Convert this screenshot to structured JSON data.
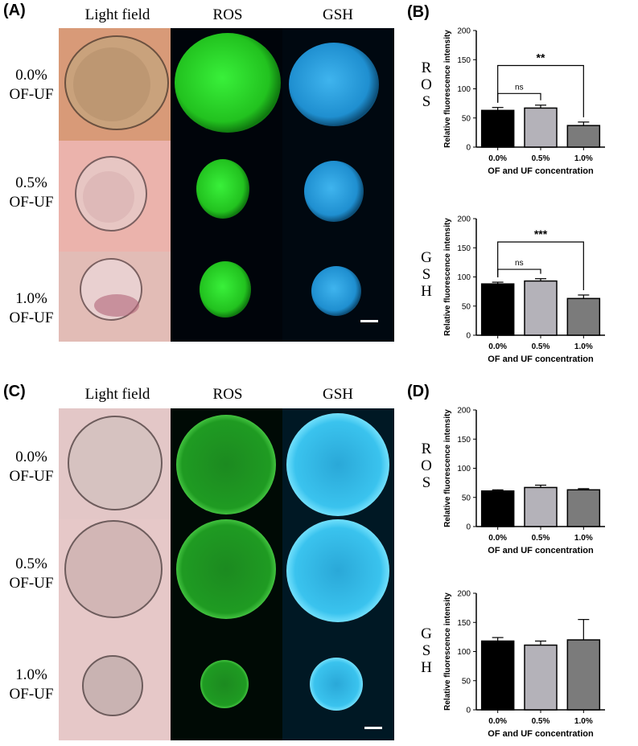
{
  "panelA": {
    "label": "(A)",
    "columns": [
      "Light field",
      "ROS",
      "GSH"
    ],
    "rows": [
      {
        "conc": "0.0%",
        "name": "OF-UF"
      },
      {
        "conc": "0.5%",
        "name": "OF-UF"
      },
      {
        "conc": "1.0%",
        "name": "OF-UF"
      }
    ]
  },
  "panelC": {
    "label": "(C)",
    "columns": [
      "Light field",
      "ROS",
      "GSH"
    ],
    "rows": [
      {
        "conc": "0.0%",
        "name": "OF-UF"
      },
      {
        "conc": "0.5%",
        "name": "OF-UF"
      },
      {
        "conc": "1.0%",
        "name": "OF-UF"
      }
    ]
  },
  "panelB": {
    "label": "(B)"
  },
  "panelD": {
    "label": "(D)"
  },
  "vertical_labels": {
    "ros": [
      "R",
      "O",
      "S"
    ],
    "gsh": [
      "G",
      "S",
      "H"
    ]
  },
  "colors": {
    "bar_0": "#000000",
    "bar_05": "#b4b2b9",
    "bar_1": "#7b7b7b",
    "ros": "#2ad42a",
    "gsh": "#2aa6e8"
  },
  "chart_data": [
    {
      "id": "B-ROS",
      "type": "bar",
      "categories": [
        "0.0%",
        "0.5%",
        "1.0%"
      ],
      "values": [
        63,
        67,
        37
      ],
      "errors": [
        5,
        5,
        6
      ],
      "ylabel": "Relative fluorescence intensity",
      "xlabel": "OF and UF concentration",
      "ylim": [
        0,
        200
      ],
      "yticks": [
        0,
        50,
        100,
        150,
        200
      ],
      "annotations": [
        {
          "from": 0,
          "to": 1,
          "text": "ns",
          "y": 92
        },
        {
          "from": 0,
          "to": 2,
          "text": "**",
          "y": 140
        }
      ]
    },
    {
      "id": "B-GSH",
      "type": "bar",
      "categories": [
        "0.0%",
        "0.5%",
        "1.0%"
      ],
      "values": [
        88,
        93,
        63
      ],
      "errors": [
        3,
        4,
        6
      ],
      "ylabel": "Relative fluorescence intensity",
      "xlabel": "OF and UF concentration",
      "ylim": [
        0,
        200
      ],
      "yticks": [
        0,
        50,
        100,
        150,
        200
      ],
      "annotations": [
        {
          "from": 0,
          "to": 1,
          "text": "ns",
          "y": 113
        },
        {
          "from": 0,
          "to": 2,
          "text": "***",
          "y": 160
        }
      ]
    },
    {
      "id": "D-ROS",
      "type": "bar",
      "categories": [
        "0.0%",
        "0.5%",
        "1.0%"
      ],
      "values": [
        61,
        67,
        63
      ],
      "errors": [
        2,
        4,
        2
      ],
      "ylabel": "Relative fluorescence intensity",
      "xlabel": "OF and UF concentration",
      "ylim": [
        0,
        200
      ],
      "yticks": [
        0,
        50,
        100,
        150,
        200
      ],
      "annotations": []
    },
    {
      "id": "D-GSH",
      "type": "bar",
      "categories": [
        "0.0%",
        "0.5%",
        "1.0%"
      ],
      "values": [
        118,
        111,
        120
      ],
      "errors": [
        6,
        7,
        35
      ],
      "ylabel": "Relative fluorescence intensity",
      "xlabel": "OF and UF concentration",
      "ylim": [
        0,
        200
      ],
      "yticks": [
        0,
        50,
        100,
        150,
        200
      ],
      "annotations": []
    }
  ]
}
